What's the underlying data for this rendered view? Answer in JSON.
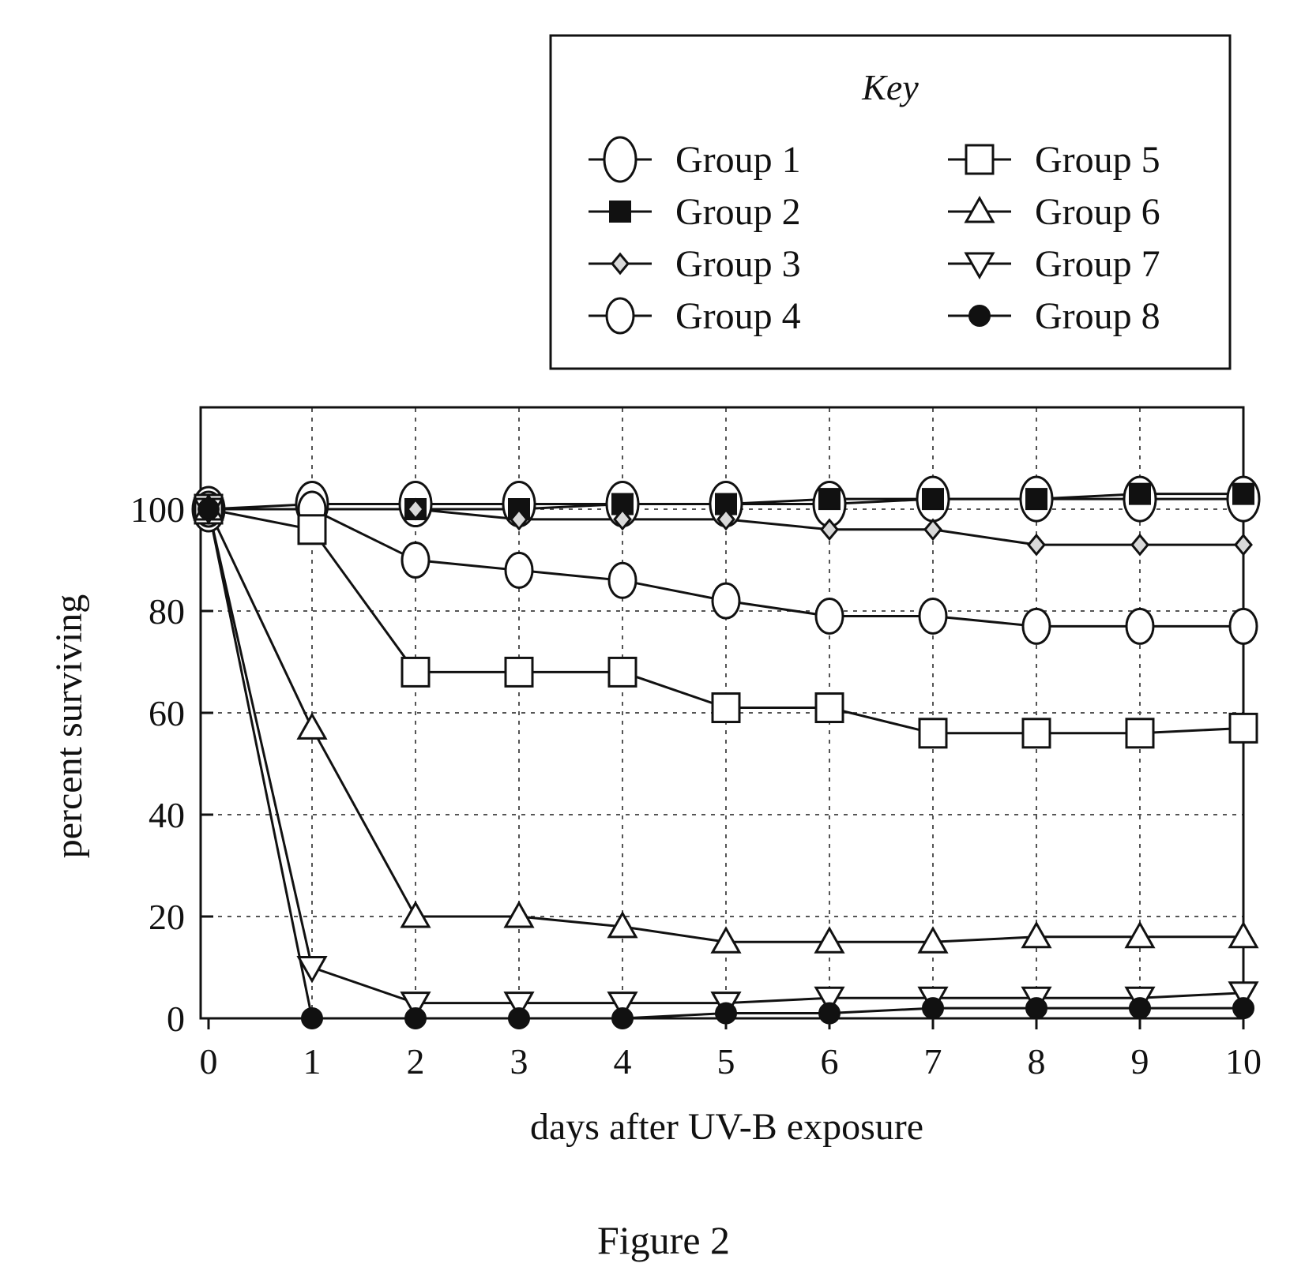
{
  "chart_data": {
    "type": "line",
    "title": "",
    "caption": "Figure 2",
    "xlabel": "days after UV-B exposure",
    "ylabel": "percent surviving",
    "x": [
      0,
      1,
      2,
      3,
      4,
      5,
      6,
      7,
      8,
      9,
      10
    ],
    "xlim": [
      0,
      10
    ],
    "ylim": [
      0,
      120
    ],
    "xticks": [
      "0",
      "1",
      "2",
      "3",
      "4",
      "5",
      "6",
      "7",
      "8",
      "9",
      "10"
    ],
    "yticks": [
      {
        "value": 0,
        "label": "0"
      },
      {
        "value": 20,
        "label": "20"
      },
      {
        "value": 40,
        "label": "40"
      },
      {
        "value": 60,
        "label": "60"
      },
      {
        "value": 80,
        "label": "80"
      },
      {
        "value": 100,
        "label": "100"
      }
    ],
    "grid": true,
    "legend": {
      "title": "Key",
      "placement": "top-right, above plot"
    },
    "series": [
      {
        "name": "Group 1",
        "marker": "large-open-circle",
        "values": [
          100,
          101,
          101,
          101,
          101,
          101,
          101,
          102,
          102,
          102,
          102
        ]
      },
      {
        "name": "Group 2",
        "marker": "filled-square",
        "values": [
          100,
          100,
          100,
          100,
          101,
          101,
          102,
          102,
          102,
          103,
          103
        ]
      },
      {
        "name": "Group 3",
        "marker": "small-diamond",
        "values": [
          100,
          100,
          100,
          98,
          98,
          98,
          96,
          96,
          93,
          93,
          93
        ]
      },
      {
        "name": "Group 4",
        "marker": "open-circle",
        "values": [
          100,
          100,
          90,
          88,
          86,
          82,
          79,
          79,
          77,
          77,
          77
        ]
      },
      {
        "name": "Group 5",
        "marker": "open-square",
        "values": [
          100,
          96,
          68,
          68,
          68,
          61,
          61,
          56,
          56,
          56,
          57
        ]
      },
      {
        "name": "Group 6",
        "marker": "open-triangle-up",
        "values": [
          100,
          57,
          20,
          20,
          18,
          15,
          15,
          15,
          16,
          16,
          16
        ]
      },
      {
        "name": "Group 7",
        "marker": "open-triangle-down",
        "values": [
          100,
          10,
          3,
          3,
          3,
          3,
          4,
          4,
          4,
          4,
          5
        ]
      },
      {
        "name": "Group 8",
        "marker": "filled-circle",
        "values": [
          100,
          0,
          0,
          0,
          0,
          1,
          1,
          2,
          2,
          2,
          2
        ]
      }
    ]
  }
}
